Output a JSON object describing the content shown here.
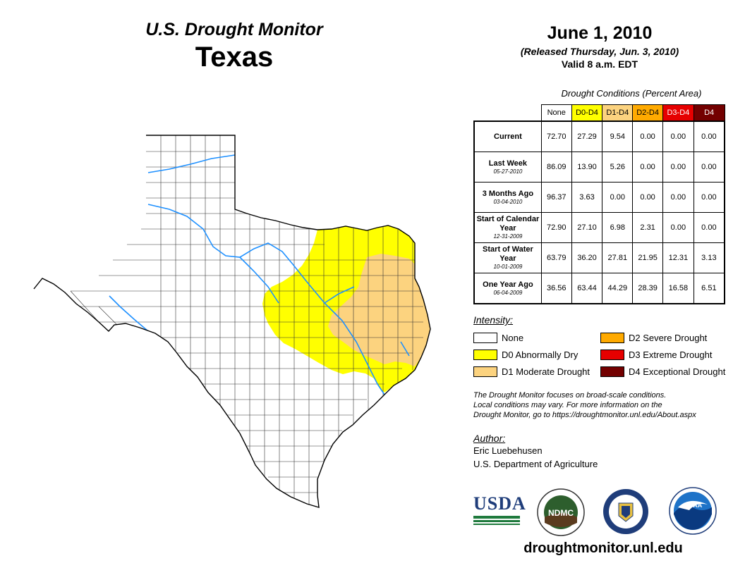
{
  "header": {
    "subtitle": "U.S. Drought Monitor",
    "state": "Texas",
    "date": "June 1, 2010",
    "released": "(Released Thursday, Jun. 3, 2010)",
    "valid": "Valid 8 a.m. EDT"
  },
  "table": {
    "caption": "Drought Conditions (Percent Area)",
    "columns": [
      {
        "label": "None",
        "color": "#ffffff"
      },
      {
        "label": "D0-D4",
        "color": "#ffff00"
      },
      {
        "label": "D1-D4",
        "color": "#fcd37f"
      },
      {
        "label": "D2-D4",
        "color": "#ffaa00"
      },
      {
        "label": "D3-D4",
        "color": "#e60000"
      },
      {
        "label": "D4",
        "color": "#730000"
      }
    ],
    "rows": [
      {
        "label": "Current",
        "date": "",
        "values": [
          "72.70",
          "27.29",
          "9.54",
          "0.00",
          "0.00",
          "0.00"
        ]
      },
      {
        "label": "Last Week",
        "date": "05-27-2010",
        "values": [
          "86.09",
          "13.90",
          "5.26",
          "0.00",
          "0.00",
          "0.00"
        ]
      },
      {
        "label": "3 Months Ago",
        "date": "03-04-2010",
        "values": [
          "96.37",
          "3.63",
          "0.00",
          "0.00",
          "0.00",
          "0.00"
        ]
      },
      {
        "label": "Start of Calendar Year",
        "date": "12-31-2009",
        "values": [
          "72.90",
          "27.10",
          "6.98",
          "2.31",
          "0.00",
          "0.00"
        ]
      },
      {
        "label": "Start of Water Year",
        "date": "10-01-2009",
        "values": [
          "63.79",
          "36.20",
          "27.81",
          "21.95",
          "12.31",
          "3.13"
        ]
      },
      {
        "label": "One Year Ago",
        "date": "06-04-2009",
        "values": [
          "36.56",
          "63.44",
          "44.29",
          "28.39",
          "16.58",
          "6.51"
        ]
      }
    ]
  },
  "legend": {
    "title": "Intensity:",
    "items": [
      {
        "label": "None",
        "color": "#ffffff"
      },
      {
        "label": "D0 Abnormally Dry",
        "color": "#ffff00"
      },
      {
        "label": "D1 Moderate Drought",
        "color": "#fcd37f"
      },
      {
        "label": "D2 Severe Drought",
        "color": "#ffaa00"
      },
      {
        "label": "D3 Extreme Drought",
        "color": "#e60000"
      },
      {
        "label": "D4 Exceptional Drought",
        "color": "#730000"
      }
    ]
  },
  "note": {
    "line1": "The Drought Monitor focuses on broad-scale conditions.",
    "line2": "Local conditions may vary. For more information on the",
    "line3": "Drought Monitor, go to https://droughtmonitor.unl.edu/About.aspx"
  },
  "author": {
    "title": "Author:",
    "name": "Eric Luebehusen",
    "org": "U.S. Department of Agriculture"
  },
  "logos": {
    "usda": "USDA",
    "ndmc": "NDMC",
    "noaa": "NOAA"
  },
  "website": "droughtmonitor.unl.edu",
  "map": {
    "rivers_color": "#1e90ff"
  }
}
